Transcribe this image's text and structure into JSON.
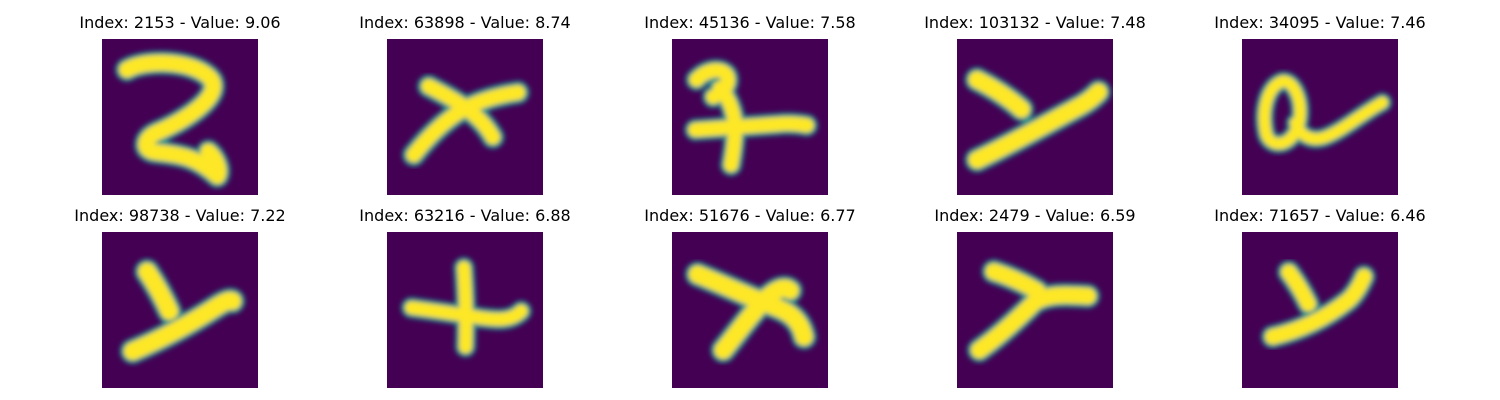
{
  "colors": {
    "background": "#440154",
    "foreground": "#fde725",
    "edge": "#21918c"
  },
  "panels": [
    {
      "title": "Index: 2153 - Value: 9.06",
      "glyph": "digit-2-stroke"
    },
    {
      "title": "Index: 63898 - Value: 8.74",
      "glyph": "arrow-like-stroke"
    },
    {
      "title": "Index: 45136 - Value: 7.58",
      "glyph": "crossed-stroke"
    },
    {
      "title": "Index: 103132 - Value: 7.48",
      "glyph": "y-shaped-stroke"
    },
    {
      "title": "Index: 34095 - Value: 7.46",
      "glyph": "looped-a-stroke"
    },
    {
      "title": "Index: 98738 - Value: 7.22",
      "glyph": "y-shaped-stroke"
    },
    {
      "title": "Index: 63216 - Value: 6.88",
      "glyph": "plus-shaped-stroke"
    },
    {
      "title": "Index: 51676 - Value: 6.77",
      "glyph": "arrow-like-stroke"
    },
    {
      "title": "Index: 2479 - Value: 6.59",
      "glyph": "y-shaped-stroke"
    },
    {
      "title": "Index: 71657 - Value: 6.46",
      "glyph": "y-shaped-stroke"
    }
  ]
}
